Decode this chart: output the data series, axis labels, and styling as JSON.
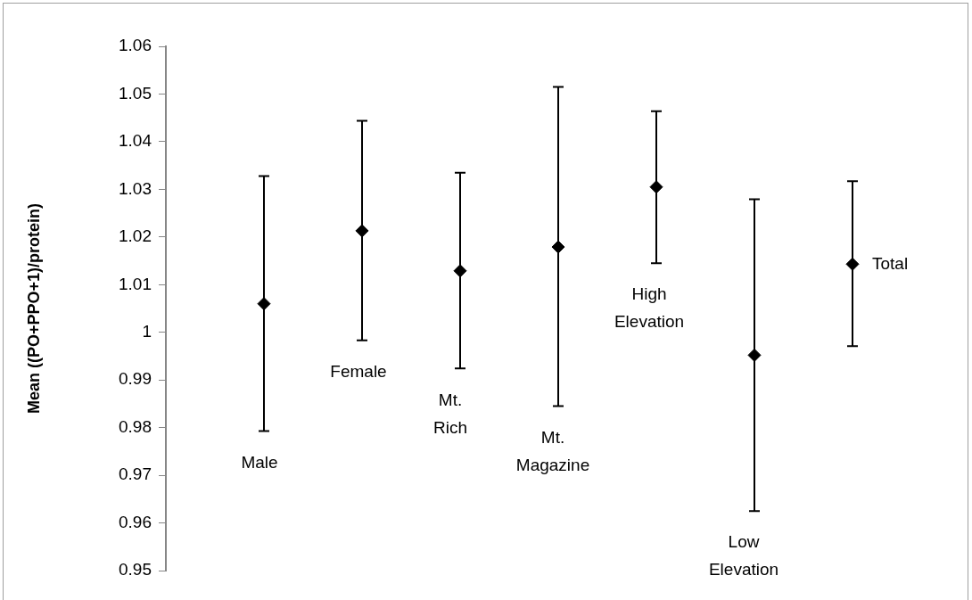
{
  "chart_data": {
    "type": "scatter",
    "ylabel": "Mean ((PO+PPO+1)/protein)",
    "categories": [
      "Male",
      "Female",
      "Mt. Rich",
      "Mt. Magazine",
      "High Elevation",
      "Low Elevation",
      "Total"
    ],
    "values": [
      1.006,
      1.0213,
      1.0129,
      1.0179,
      1.0305,
      0.9952,
      1.0143
    ],
    "errors": [
      [
        0.9793,
        1.0328
      ],
      [
        0.9983,
        1.0444
      ],
      [
        0.9924,
        1.0335
      ],
      [
        0.9845,
        1.0515
      ],
      [
        1.0145,
        1.0464
      ],
      [
        0.9625,
        1.0279
      ],
      [
        0.9971,
        1.0317
      ]
    ],
    "color": "#000000",
    "marker": "diamond",
    "ylim": [
      0.95,
      1.06
    ],
    "yticks": [
      0.95,
      0.96,
      0.97,
      0.98,
      0.99,
      1,
      1.01,
      1.02,
      1.03,
      1.04,
      1.05,
      1.06
    ]
  }
}
